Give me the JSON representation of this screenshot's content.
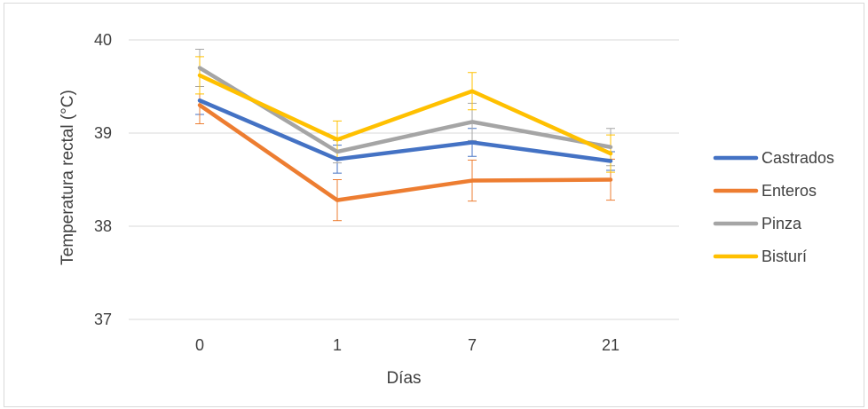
{
  "chart_data": {
    "type": "line",
    "xlabel": "Días",
    "ylabel": "Temperatura rectal (°C)",
    "categories": [
      "0",
      "1",
      "7",
      "21"
    ],
    "ylim": [
      37,
      40
    ],
    "yticks": [
      "37",
      "38",
      "39",
      "40"
    ],
    "grid": true,
    "legend_position": "right",
    "series": [
      {
        "name": "Castrados",
        "color": "#4472c4",
        "values": [
          39.35,
          38.72,
          38.9,
          38.7
        ],
        "errors": [
          0.15,
          0.15,
          0.15,
          0.1
        ]
      },
      {
        "name": "Enteros",
        "color": "#ed7d31",
        "values": [
          39.3,
          38.28,
          38.49,
          38.5
        ],
        "errors": [
          0.2,
          0.22,
          0.22,
          0.22
        ]
      },
      {
        "name": "Pinza",
        "color": "#a5a5a5",
        "values": [
          39.7,
          38.8,
          39.12,
          38.85
        ],
        "errors": [
          0.2,
          0.12,
          0.2,
          0.2
        ]
      },
      {
        "name": "Bisturí",
        "color": "#ffc000",
        "values": [
          39.62,
          38.93,
          39.45,
          38.78
        ],
        "errors": [
          0.2,
          0.2,
          0.2,
          0.2
        ]
      }
    ]
  }
}
